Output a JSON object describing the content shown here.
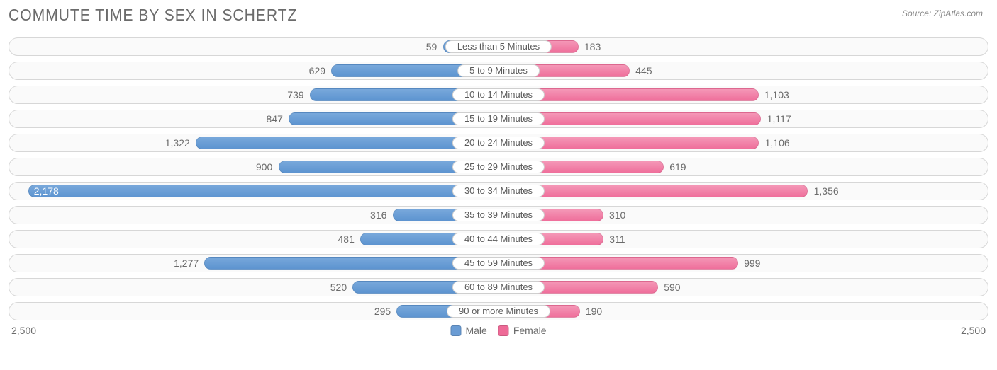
{
  "title": "COMMUTE TIME BY SEX IN SCHERTZ",
  "source": "Source: ZipAtlas.com",
  "chart": {
    "type": "diverging-bar",
    "max": 2500,
    "axis_left_label": "2,500",
    "axis_right_label": "2,500",
    "background_color": "#ffffff",
    "row_bg": "#fafafa",
    "row_border": "#d7d7d7",
    "male_color": "#6a9cd4",
    "female_color": "#ee6a97",
    "text_color": "#6b6b6b",
    "label_pill_bg": "#ffffff",
    "label_pill_border": "#cfcfcf",
    "legend": {
      "male": "Male",
      "female": "Female"
    },
    "categories": [
      {
        "label": "Less than 5 Minutes",
        "male": 59,
        "male_fmt": "59",
        "female": 183,
        "female_fmt": "183"
      },
      {
        "label": "5 to 9 Minutes",
        "male": 629,
        "male_fmt": "629",
        "female": 445,
        "female_fmt": "445"
      },
      {
        "label": "10 to 14 Minutes",
        "male": 739,
        "male_fmt": "739",
        "female": 1103,
        "female_fmt": "1,103"
      },
      {
        "label": "15 to 19 Minutes",
        "male": 847,
        "male_fmt": "847",
        "female": 1117,
        "female_fmt": "1,117"
      },
      {
        "label": "20 to 24 Minutes",
        "male": 1322,
        "male_fmt": "1,322",
        "female": 1106,
        "female_fmt": "1,106"
      },
      {
        "label": "25 to 29 Minutes",
        "male": 900,
        "male_fmt": "900",
        "female": 619,
        "female_fmt": "619"
      },
      {
        "label": "30 to 34 Minutes",
        "male": 2178,
        "male_fmt": "2,178",
        "female": 1356,
        "female_fmt": "1,356"
      },
      {
        "label": "35 to 39 Minutes",
        "male": 316,
        "male_fmt": "316",
        "female": 310,
        "female_fmt": "310"
      },
      {
        "label": "40 to 44 Minutes",
        "male": 481,
        "male_fmt": "481",
        "female": 311,
        "female_fmt": "311"
      },
      {
        "label": "45 to 59 Minutes",
        "male": 1277,
        "male_fmt": "1,277",
        "female": 999,
        "female_fmt": "999"
      },
      {
        "label": "60 to 89 Minutes",
        "male": 520,
        "male_fmt": "520",
        "female": 590,
        "female_fmt": "590"
      },
      {
        "label": "90 or more Minutes",
        "male": 295,
        "male_fmt": "295",
        "female": 190,
        "female_fmt": "190"
      }
    ]
  }
}
